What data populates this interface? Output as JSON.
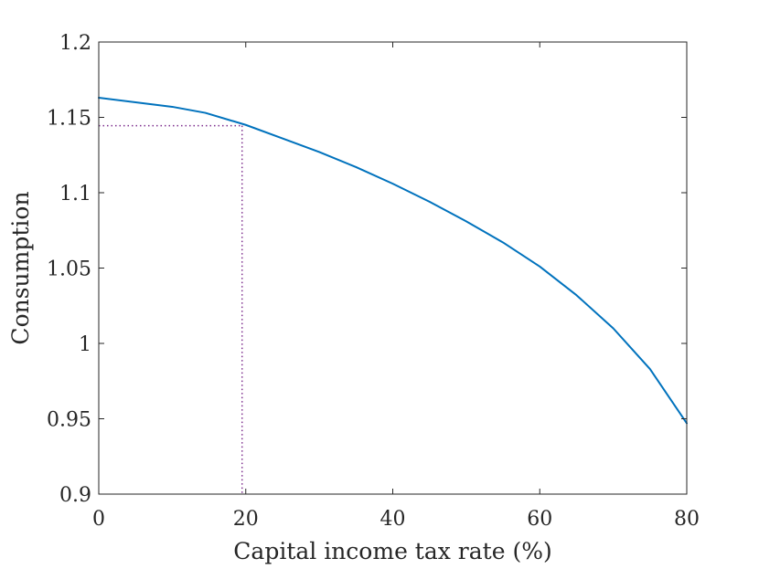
{
  "chart_data": {
    "type": "line",
    "title": "",
    "xlabel": "Capital income tax rate (%)",
    "ylabel": "Consumption",
    "xlim": [
      0,
      80
    ],
    "ylim": [
      0.9,
      1.2
    ],
    "xticks": [
      0,
      20,
      40,
      60,
      80
    ],
    "xtick_labels": [
      "0",
      "20",
      "40",
      "60",
      "80"
    ],
    "yticks": [
      0.9,
      0.95,
      1.0,
      1.05,
      1.1,
      1.15,
      1.2
    ],
    "ytick_labels": [
      "0.9",
      "0.95",
      "1",
      "1.05",
      "1.1",
      "1.15",
      "1.2"
    ],
    "grid": false,
    "legend": "none",
    "series": [
      {
        "color": "#0072BD",
        "x": [
          0,
          5,
          10,
          14.5,
          20,
          25,
          30,
          35,
          40,
          45,
          50,
          55,
          60,
          65,
          70,
          75,
          80
        ],
        "y": [
          1.163,
          1.16,
          1.157,
          1.153,
          1.145,
          1.136,
          1.127,
          1.117,
          1.106,
          1.094,
          1.081,
          1.067,
          1.051,
          1.032,
          1.01,
          0.983,
          0.947
        ]
      }
    ],
    "annotations": [
      {
        "type": "dotted-guide",
        "color": "#7E2F8E",
        "x": 19.5,
        "y": 1.1445
      }
    ]
  }
}
